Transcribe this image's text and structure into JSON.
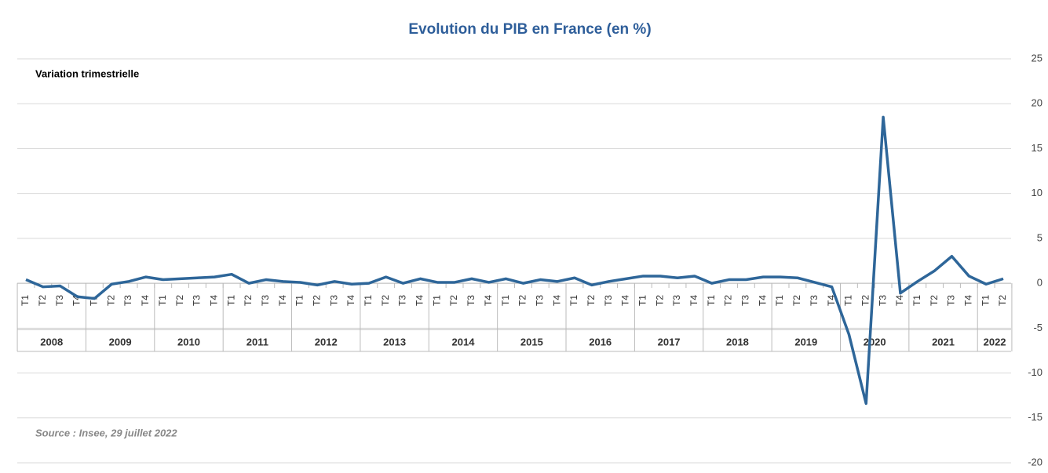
{
  "chart_data": {
    "type": "line",
    "title": "Evolution du PIB en France (en %)",
    "subtitle": "Variation trimestrielle",
    "source": "Source : Insee, 29 juillet 2022",
    "categories": [
      "T1",
      "T2",
      "T3",
      "T4",
      "T1",
      "T2",
      "T3",
      "T4",
      "T1",
      "T2",
      "T3",
      "T4",
      "T1",
      "T2",
      "T3",
      "T4",
      "T1",
      "T2",
      "T3",
      "T4",
      "T1",
      "T2",
      "T3",
      "T4",
      "T1",
      "T2",
      "T3",
      "T4",
      "T1",
      "T2",
      "T3",
      "T4",
      "T1",
      "T2",
      "T3",
      "T4",
      "T1",
      "T2",
      "T3",
      "T4",
      "T1",
      "T2",
      "T3",
      "T4",
      "T1",
      "T2",
      "T3",
      "T4",
      "T1",
      "T2",
      "T3",
      "T4",
      "T1",
      "T2",
      "T3",
      "T4",
      "T1",
      "T2"
    ],
    "year_groups": [
      "2008",
      "2009",
      "2010",
      "2011",
      "2012",
      "2013",
      "2014",
      "2015",
      "2016",
      "2017",
      "2018",
      "2019",
      "2020",
      "2021",
      "2022"
    ],
    "series": [
      {
        "name": "Variation trimestrielle",
        "color": "#2e6699",
        "values": [
          0.4,
          -0.4,
          -0.3,
          -1.5,
          -1.7,
          -0.1,
          0.2,
          0.7,
          0.4,
          0.5,
          0.6,
          0.7,
          1.0,
          0.0,
          0.4,
          0.2,
          0.1,
          -0.2,
          0.2,
          -0.1,
          0.0,
          0.7,
          0.0,
          0.5,
          0.1,
          0.1,
          0.5,
          0.1,
          0.5,
          0.0,
          0.4,
          0.2,
          0.6,
          -0.2,
          0.2,
          0.5,
          0.8,
          0.8,
          0.6,
          0.8,
          0.0,
          0.4,
          0.4,
          0.7,
          0.7,
          0.6,
          0.1,
          -0.4,
          -5.7,
          -13.4,
          18.5,
          -1.1,
          0.2,
          1.4,
          3.0,
          0.8,
          -0.1,
          0.5
        ]
      }
    ],
    "ylim": [
      -20,
      25
    ],
    "yticks": [
      -20,
      -15,
      -10,
      -5,
      0,
      5,
      10,
      15,
      20,
      25
    ],
    "grid": true
  }
}
